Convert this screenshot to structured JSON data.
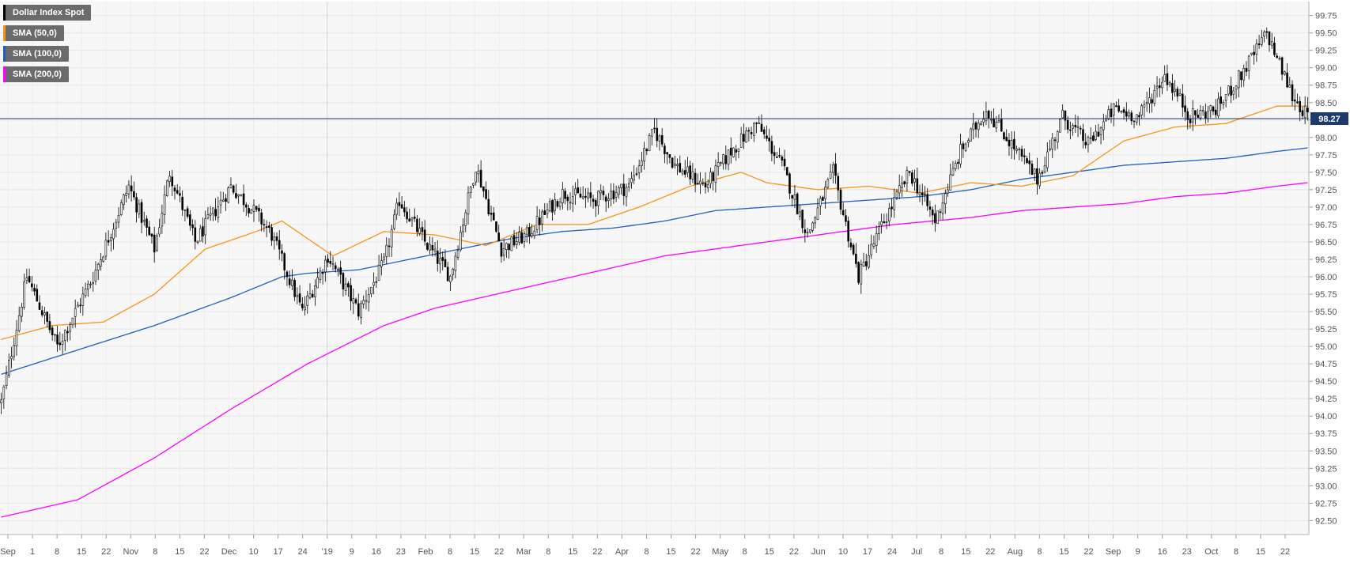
{
  "legend": [
    {
      "label": "Dollar Index Spot",
      "color": "#000000"
    },
    {
      "label": "SMA (50,0)",
      "color": "#f7931a"
    },
    {
      "label": "SMA (100,0)",
      "color": "#1f5fbf"
    },
    {
      "label": "SMA (200,0)",
      "color": "#ff00ff"
    }
  ],
  "chart_data": {
    "type": "candlestick",
    "title": "",
    "y_range": [
      92.3,
      99.95
    ],
    "y_ticks": [
      "92.50",
      "92.75",
      "93.00",
      "93.25",
      "93.50",
      "93.75",
      "94.00",
      "94.25",
      "94.50",
      "94.75",
      "95.00",
      "95.25",
      "95.50",
      "95.75",
      "96.00",
      "96.25",
      "96.50",
      "96.75",
      "97.00",
      "97.25",
      "97.50",
      "97.75",
      "98.00",
      "98.25",
      "98.50",
      "98.75",
      "99.00",
      "99.25",
      "99.50",
      "99.75"
    ],
    "x_ticks": [
      "Sep",
      "1",
      "8",
      "15",
      "22",
      "Nov",
      "8",
      "15",
      "22",
      "Dec",
      "10",
      "17",
      "24",
      "'19",
      "9",
      "16",
      "23",
      "Feb",
      "8",
      "15",
      "22",
      "Mar",
      "8",
      "15",
      "22",
      "Apr",
      "8",
      "15",
      "22",
      "May",
      "8",
      "15",
      "22",
      "Jun",
      "10",
      "17",
      "24",
      "Jul",
      "8",
      "15",
      "22",
      "Aug",
      "8",
      "15",
      "22",
      "Sep",
      "9",
      "16",
      "23",
      "Oct",
      "8",
      "15",
      "22"
    ],
    "current_price": 98.27,
    "current_price_label": "98.27",
    "anchors": {
      "close": [
        [
          0,
          94.2
        ],
        [
          10,
          96.0
        ],
        [
          22,
          95.0
        ],
        [
          36,
          96.0
        ],
        [
          50,
          97.3
        ],
        [
          60,
          96.4
        ],
        [
          66,
          97.5
        ],
        [
          76,
          96.5
        ],
        [
          90,
          97.3
        ],
        [
          100,
          96.9
        ],
        [
          106,
          96.6
        ],
        [
          118,
          95.5
        ],
        [
          128,
          96.3
        ],
        [
          140,
          95.5
        ],
        [
          150,
          96.2
        ],
        [
          156,
          97.1
        ],
        [
          166,
          96.5
        ],
        [
          176,
          96.0
        ],
        [
          186,
          97.6
        ],
        [
          196,
          96.4
        ],
        [
          206,
          96.6
        ],
        [
          220,
          97.2
        ],
        [
          232,
          97.1
        ],
        [
          246,
          97.3
        ],
        [
          256,
          98.1
        ],
        [
          264,
          97.6
        ],
        [
          276,
          97.3
        ],
        [
          286,
          97.8
        ],
        [
          296,
          98.2
        ],
        [
          306,
          97.6
        ],
        [
          316,
          96.6
        ],
        [
          326,
          97.5
        ],
        [
          336,
          96.0
        ],
        [
          346,
          96.8
        ],
        [
          356,
          97.5
        ],
        [
          366,
          96.8
        ],
        [
          376,
          97.8
        ],
        [
          386,
          98.4
        ],
        [
          396,
          97.9
        ],
        [
          406,
          97.4
        ],
        [
          416,
          98.3
        ],
        [
          426,
          97.9
        ],
        [
          436,
          98.4
        ],
        [
          446,
          98.3
        ],
        [
          456,
          98.9
        ],
        [
          466,
          98.3
        ],
        [
          476,
          98.4
        ],
        [
          486,
          98.9
        ],
        [
          496,
          99.5
        ],
        [
          506,
          98.6
        ],
        [
          512,
          98.3
        ]
      ],
      "sma50": [
        [
          0,
          95.1
        ],
        [
          20,
          95.3
        ],
        [
          40,
          95.35
        ],
        [
          60,
          95.75
        ],
        [
          80,
          96.4
        ],
        [
          100,
          96.65
        ],
        [
          110,
          96.8
        ],
        [
          130,
          96.3
        ],
        [
          150,
          96.65
        ],
        [
          170,
          96.6
        ],
        [
          190,
          96.45
        ],
        [
          210,
          96.75
        ],
        [
          230,
          96.75
        ],
        [
          250,
          97.0
        ],
        [
          270,
          97.3
        ],
        [
          290,
          97.5
        ],
        [
          300,
          97.35
        ],
        [
          320,
          97.25
        ],
        [
          340,
          97.3
        ],
        [
          360,
          97.2
        ],
        [
          380,
          97.35
        ],
        [
          400,
          97.3
        ],
        [
          420,
          97.45
        ],
        [
          440,
          97.95
        ],
        [
          460,
          98.15
        ],
        [
          480,
          98.2
        ],
        [
          500,
          98.45
        ],
        [
          512,
          98.45
        ]
      ],
      "sma100": [
        [
          0,
          94.6
        ],
        [
          30,
          94.95
        ],
        [
          60,
          95.3
        ],
        [
          90,
          95.7
        ],
        [
          110,
          96.0
        ],
        [
          120,
          96.05
        ],
        [
          140,
          96.1
        ],
        [
          160,
          96.25
        ],
        [
          180,
          96.4
        ],
        [
          200,
          96.55
        ],
        [
          220,
          96.65
        ],
        [
          240,
          96.7
        ],
        [
          260,
          96.8
        ],
        [
          280,
          96.95
        ],
        [
          300,
          97.0
        ],
        [
          320,
          97.05
        ],
        [
          340,
          97.1
        ],
        [
          360,
          97.15
        ],
        [
          380,
          97.25
        ],
        [
          400,
          97.4
        ],
        [
          420,
          97.5
        ],
        [
          440,
          97.6
        ],
        [
          460,
          97.65
        ],
        [
          480,
          97.7
        ],
        [
          500,
          97.8
        ],
        [
          512,
          97.85
        ]
      ],
      "sma200": [
        [
          0,
          92.55
        ],
        [
          30,
          92.8
        ],
        [
          60,
          93.4
        ],
        [
          90,
          94.1
        ],
        [
          120,
          94.75
        ],
        [
          150,
          95.3
        ],
        [
          170,
          95.55
        ],
        [
          200,
          95.8
        ],
        [
          230,
          96.05
        ],
        [
          260,
          96.3
        ],
        [
          290,
          96.45
        ],
        [
          320,
          96.6
        ],
        [
          350,
          96.75
        ],
        [
          380,
          96.85
        ],
        [
          400,
          96.95
        ],
        [
          420,
          97.0
        ],
        [
          440,
          97.05
        ],
        [
          460,
          97.15
        ],
        [
          480,
          97.2
        ],
        [
          500,
          97.3
        ],
        [
          512,
          97.35
        ]
      ]
    }
  }
}
